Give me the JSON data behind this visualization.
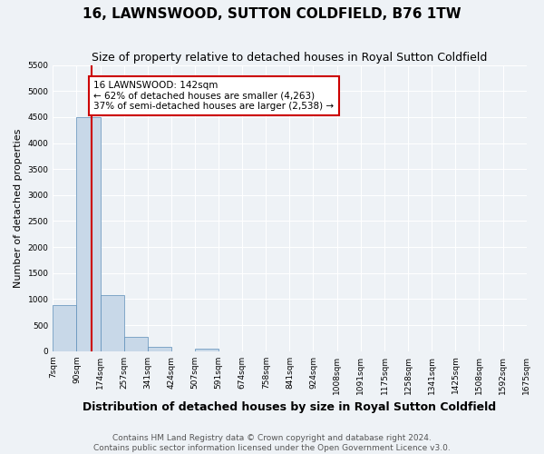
{
  "title": "16, LAWNSWOOD, SUTTON COLDFIELD, B76 1TW",
  "subtitle": "Size of property relative to detached houses in Royal Sutton Coldfield",
  "xlabel": "Distribution of detached houses by size in Royal Sutton Coldfield",
  "ylabel": "Number of detached properties",
  "footer_line1": "Contains HM Land Registry data © Crown copyright and database right 2024.",
  "footer_line2": "Contains public sector information licensed under the Open Government Licence v3.0.",
  "bin_labels": [
    "7sqm",
    "90sqm",
    "174sqm",
    "257sqm",
    "341sqm",
    "424sqm",
    "507sqm",
    "591sqm",
    "674sqm",
    "758sqm",
    "841sqm",
    "924sqm",
    "1008sqm",
    "1091sqm",
    "1175sqm",
    "1258sqm",
    "1341sqm",
    "1425sqm",
    "1508sqm",
    "1592sqm",
    "1675sqm"
  ],
  "bin_edges": [
    7,
    90,
    174,
    257,
    341,
    424,
    507,
    591,
    674,
    758,
    841,
    924,
    1008,
    1091,
    1175,
    1258,
    1341,
    1425,
    1508,
    1592,
    1675
  ],
  "bar_heights": [
    880,
    4500,
    1075,
    280,
    90,
    0,
    50,
    0,
    0,
    0,
    0,
    0,
    0,
    0,
    0,
    0,
    0,
    0,
    0,
    0
  ],
  "bar_color": "#c8d8e8",
  "bar_edge_color": "#5b8db8",
  "property_size": 142,
  "red_line_color": "#cc0000",
  "annotation_line1": "16 LAWNSWOOD: 142sqm",
  "annotation_line2": "← 62% of detached houses are smaller (4,263)",
  "annotation_line3": "37% of semi-detached houses are larger (2,538) →",
  "annotation_box_color": "#ffffff",
  "annotation_box_edge": "#cc0000",
  "ylim": [
    0,
    5500
  ],
  "yticks": [
    0,
    500,
    1000,
    1500,
    2000,
    2500,
    3000,
    3500,
    4000,
    4500,
    5000,
    5500
  ],
  "bg_color": "#eef2f6",
  "grid_color": "#ffffff",
  "title_fontsize": 11,
  "subtitle_fontsize": 9,
  "axis_label_fontsize": 8,
  "tick_fontsize": 6.5,
  "footer_fontsize": 6.5,
  "annotation_fontsize": 7.5
}
